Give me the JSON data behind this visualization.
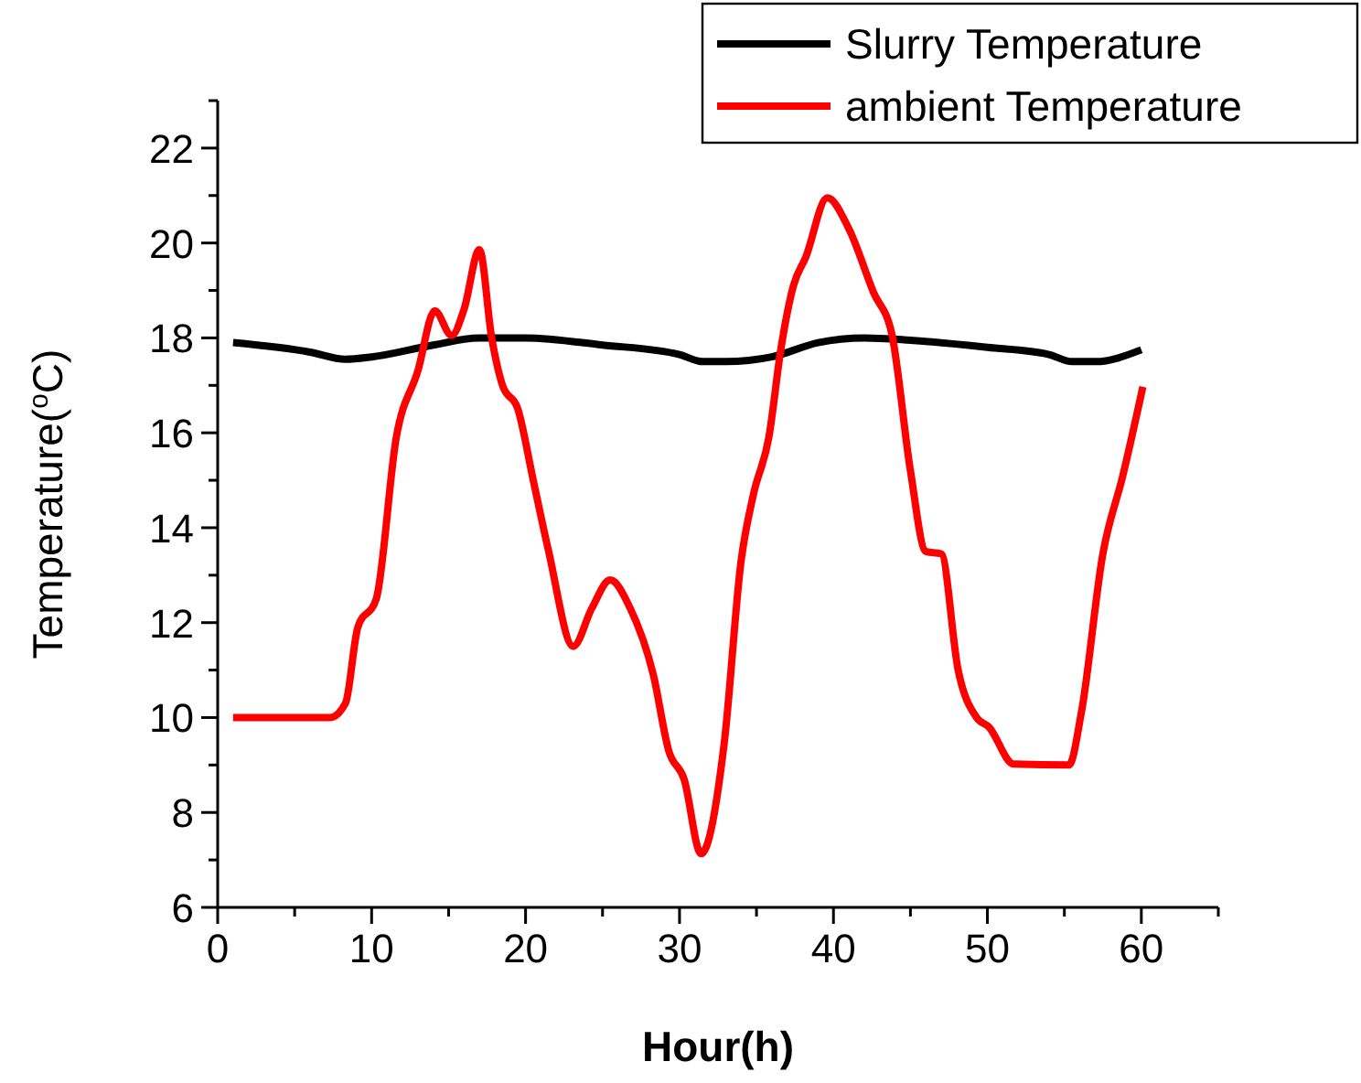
{
  "chart_data": {
    "type": "line",
    "xlabel": "Hour(h)",
    "ylabel": "Temperature($^{o}$C)",
    "xlim": [
      0,
      65
    ],
    "xticks": [
      0,
      10,
      20,
      30,
      40,
      50,
      60
    ],
    "ylim": [
      6,
      23
    ],
    "yticks": [
      6,
      8,
      10,
      12,
      14,
      16,
      18,
      20,
      22
    ],
    "legend": "top right",
    "grid": false,
    "marker": "none",
    "line_style": "solid",
    "series": [
      {
        "name": "Slurry Temperature",
        "color": "#000000",
        "x": [
          1,
          6,
          8.3,
          10,
          14,
          17,
          20,
          25,
          30,
          31.5,
          33,
          36,
          39,
          42,
          45,
          50,
          54,
          55.5,
          57,
          60
        ],
        "values": [
          17.9,
          17.7,
          17.55,
          17.6,
          17.85,
          18.0,
          18.0,
          17.85,
          17.65,
          17.5,
          17.5,
          17.6,
          17.9,
          18.0,
          17.95,
          17.8,
          17.65,
          17.5,
          17.5,
          17.75
        ]
      },
      {
        "name": "ambient Temperature",
        "color": "#ff0000",
        "x": [
          1,
          7.3,
          8.3,
          9.1,
          10.3,
          11.6,
          13,
          14.1,
          15.2,
          16,
          17,
          17.8,
          18.5,
          19.5,
          20.5,
          21.5,
          23.1,
          24.3,
          25.5,
          26.8,
          28.3,
          29.3,
          30.3,
          31.4,
          32.9,
          34,
          34.8,
          35.8,
          36.6,
          37.4,
          38.2,
          39.6,
          41,
          42.6,
          43.8,
          45,
          46,
          47,
          48.1,
          49.3,
          50.1,
          51.7,
          55.3,
          56.1,
          57.5,
          58.8,
          60.1
        ],
        "values": [
          10,
          10,
          10.3,
          11.9,
          12.5,
          15.9,
          17.3,
          18.57,
          18.05,
          18.6,
          19.86,
          18,
          17,
          16.5,
          15,
          13.5,
          11.5,
          12.3,
          12.9,
          12.3,
          10.9,
          9.3,
          8.7,
          7.13,
          9.45,
          13.3,
          14.7,
          15.9,
          17.8,
          19.1,
          19.7,
          20.95,
          20.3,
          18.96,
          18.07,
          15.2,
          13.5,
          13.45,
          11,
          10,
          9.8,
          9.02,
          9.0,
          10.1,
          13.45,
          15.1,
          16.97
        ]
      }
    ]
  }
}
